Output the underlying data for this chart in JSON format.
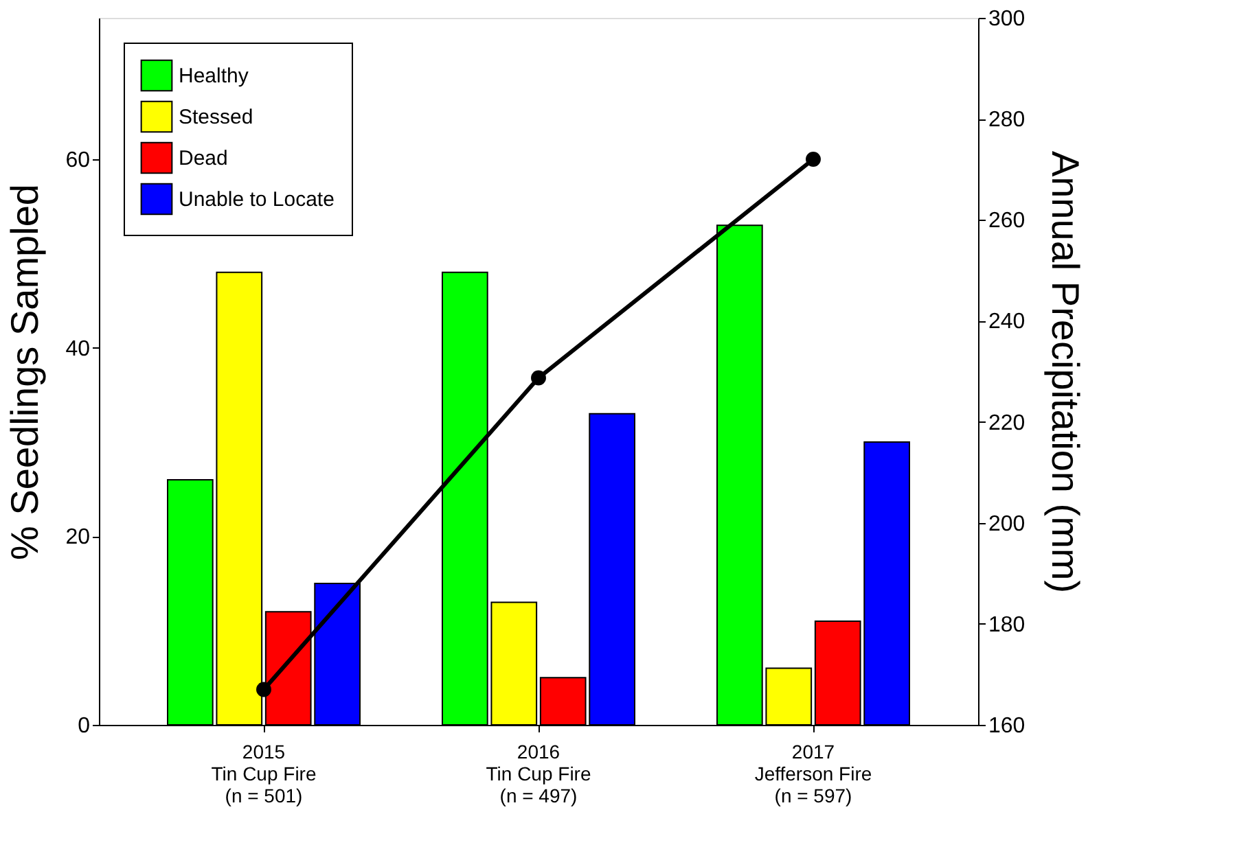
{
  "chart_data": {
    "type": "bar",
    "ylabel": "% Seedlings Sampled",
    "y2label": "Annual Precipitation (mm)",
    "categories": [
      "2015\nTin Cup Fire\n(n = 501)",
      "2016\nTin Cup Fire\n(n = 497)",
      "2017\nJefferson Fire\n(n = 597)"
    ],
    "series": [
      {
        "name": "Healthy",
        "color": "#00ff00",
        "values": [
          26,
          48,
          53
        ]
      },
      {
        "name": "Stessed",
        "color": "#ffff00",
        "values": [
          48,
          13,
          6
        ]
      },
      {
        "name": "Dead",
        "color": "#ff0000",
        "values": [
          12,
          5,
          11
        ]
      },
      {
        "name": "Unable to Locate",
        "color": "#0000ff",
        "values": [
          15,
          33,
          30
        ]
      },
      {
        "type": "line",
        "axis": "y2",
        "color": "#000000",
        "marker": "circle",
        "values": [
          167,
          228.7,
          272
        ]
      }
    ],
    "ylim": [
      0,
      75
    ],
    "yticks": [
      0,
      20,
      40,
      60
    ],
    "y2lim": [
      160,
      300
    ],
    "y2ticks": [
      160,
      180,
      200,
      220,
      240,
      260,
      280,
      300
    ],
    "legend": "top left",
    "grid": false
  }
}
